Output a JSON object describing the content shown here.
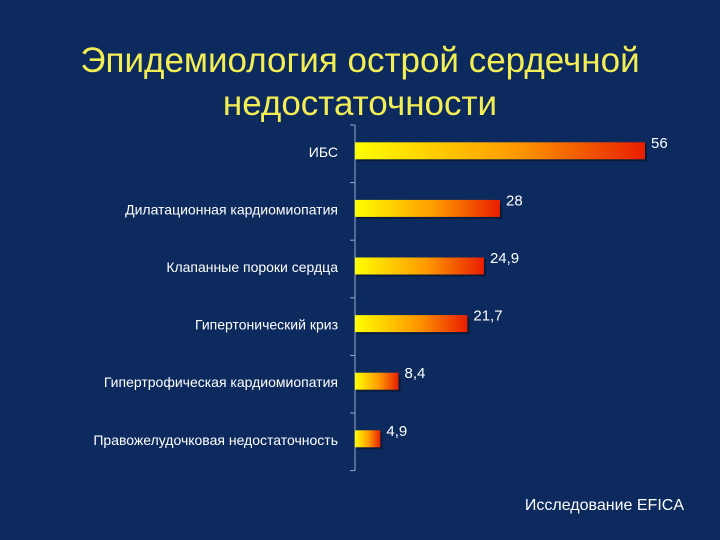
{
  "title": {
    "line1": "Эпидемиология острой сердечной",
    "line2": "недостаточности"
  },
  "source": "Исследование EFICA",
  "chart_data": {
    "type": "bar",
    "orientation": "horizontal",
    "categories": [
      "ИБС",
      "Дилатационная кардиомиопатия",
      "Клапанные пороки сердца",
      "Гипертонический криз",
      "Гипертрофическая кардиомиопатия",
      "Правожелудочковая недостаточность"
    ],
    "values": [
      56,
      28,
      24.9,
      21.7,
      8.4,
      4.9
    ],
    "data_labels": [
      "56",
      "28",
      "24,9",
      "21,7",
      "8,4",
      "4,9"
    ],
    "xlim": [
      0,
      60
    ],
    "grid": false,
    "legend": "none",
    "colors": {
      "bar_start": "#ffff00",
      "bar_mid": "#ff9a00",
      "bar_end": "#e81e00",
      "text": "#ffffff",
      "axis": "#9aa8c8"
    }
  }
}
